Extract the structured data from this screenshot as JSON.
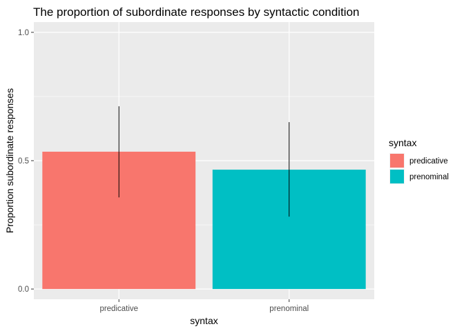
{
  "chart_data": {
    "type": "bar",
    "title": "The proportion of subordinate responses by syntactic condition",
    "xlabel": "syntax",
    "ylabel": "Proportion subordinate responses",
    "categories": [
      "predicative",
      "prenominal"
    ],
    "values": [
      0.535,
      0.465
    ],
    "error_bars": [
      {
        "low": 0.357,
        "high": 0.712
      },
      {
        "low": 0.282,
        "high": 0.65
      }
    ],
    "colors": [
      "#F8766D",
      "#00BFC4"
    ],
    "ylim": [
      -0.04,
      1.04
    ],
    "yticks": [
      0.0,
      0.5,
      1.0
    ],
    "ytick_labels": [
      "0.0",
      "0.5",
      "1.0"
    ],
    "grid": true,
    "legend": {
      "title": "syntax",
      "position": "right",
      "entries": [
        "predicative",
        "prenominal"
      ]
    }
  }
}
